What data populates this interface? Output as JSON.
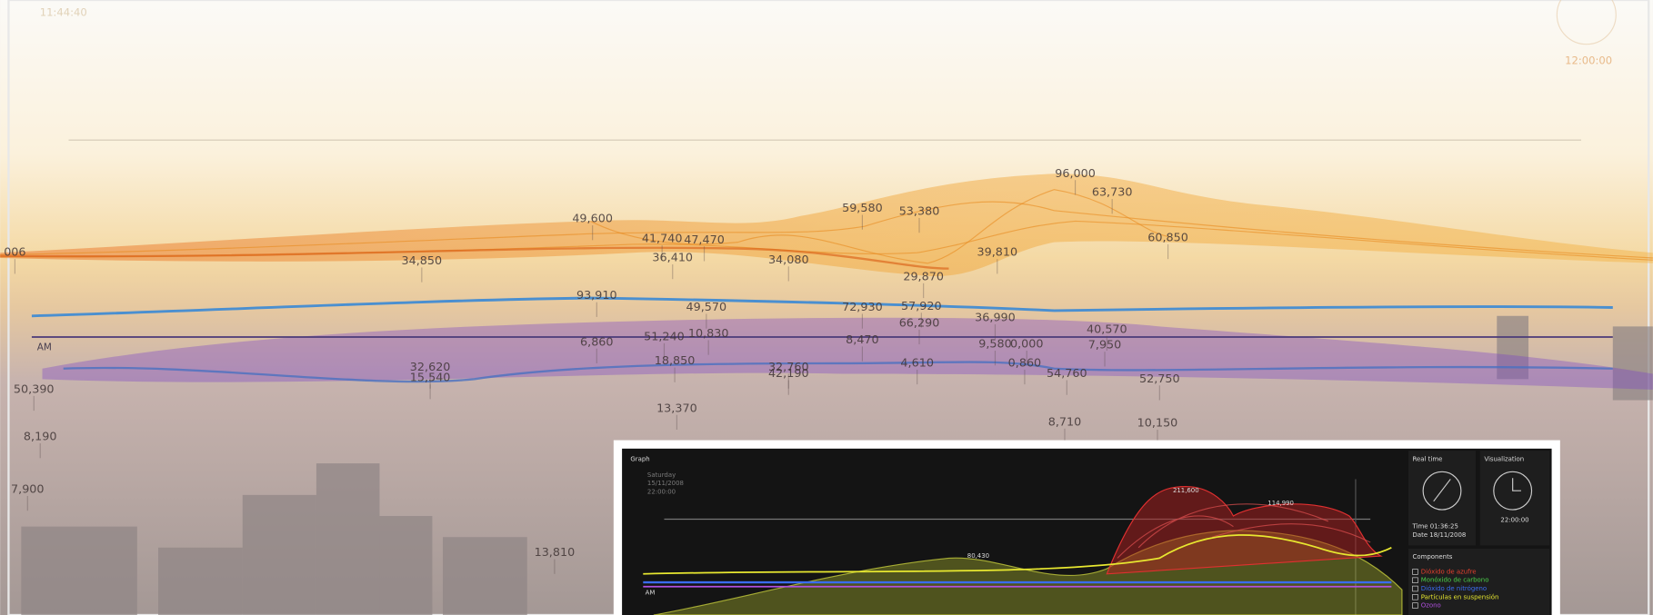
{
  "clock_top_left": "11:44:40",
  "clock_top_right": "12:00:00",
  "axis_label": "AM",
  "scene_labels": [
    "006",
    "34,850",
    "49,600",
    "41,740",
    "47,470",
    "36,410",
    "34,080",
    "59,580",
    "53,380",
    "96,000",
    "63,730",
    "60,850",
    "39,810",
    "29,870",
    "93,910",
    "49,570",
    "72,930",
    "57,920",
    "66,290",
    "36,990",
    "40,570",
    "6,860",
    "51,240",
    "10,830",
    "8,470",
    "9,580",
    "0,000",
    "7,950",
    "32,620",
    "15,540",
    "18,850",
    "32,760",
    "42,190",
    "4,610",
    "0,860",
    "54,760",
    "52,750",
    "13,370",
    "8,710",
    "10,150",
    "50,390",
    "8,190",
    "7,900",
    "13,810"
  ],
  "inset": {
    "graph_title": "Graph",
    "day": "Saturday",
    "date": "15/11/2008",
    "time": "22:00:00",
    "peak_labels": [
      "211,600",
      "114,990",
      "80,430"
    ],
    "axis_label": "AM",
    "realtime_title": "Real time",
    "visualization_title": "Visualization",
    "time_line": "Time 01:36:25",
    "date_line": "Date 18/11/2008",
    "visualization_time": "22:00:00",
    "components_title": "Components",
    "components": [
      {
        "name": "Dióxido de azufre",
        "color": "#e8402e"
      },
      {
        "name": "Monóxido de carbono",
        "color": "#4ad04a"
      },
      {
        "name": "Dióxido de nitrógeno",
        "color": "#3a6cf0"
      },
      {
        "name": "Partículas en suspensión",
        "color": "#e8e830"
      },
      {
        "name": "Ozono",
        "color": "#b050e0"
      }
    ]
  }
}
